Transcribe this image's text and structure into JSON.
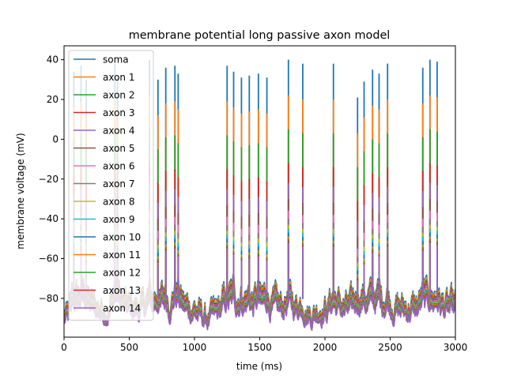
{
  "chart_data": {
    "type": "line",
    "title": "membrane potential long passive axon model",
    "xlabel": "time (ms)",
    "ylabel": "membrane voltage (mV)",
    "xlim": [
      0,
      3000
    ],
    "ylim": [
      -99.5,
      47
    ],
    "xticks": [
      0,
      500,
      1000,
      1500,
      2000,
      2500,
      3000
    ],
    "yticks": [
      -80,
      -60,
      -40,
      -20,
      0,
      20,
      40
    ],
    "xtick_labels": [
      "0",
      "500",
      "1000",
      "1500",
      "2000",
      "2500",
      "3000"
    ],
    "ytick_labels": [
      "−80",
      "−60",
      "−40",
      "−20",
      "0",
      "20",
      "40"
    ],
    "grid": false,
    "legend_position": "top-left",
    "spike_times_ms": [
      75,
      130,
      170,
      390,
      410,
      655,
      720,
      780,
      850,
      875,
      1250,
      1300,
      1360,
      1420,
      1490,
      1555,
      1720,
      1830,
      2065,
      2250,
      2300,
      2365,
      2415,
      2480,
      2750,
      2805,
      2860
    ],
    "spike_peak_soma_mV": [
      34,
      37,
      30,
      38,
      32,
      40,
      30,
      36,
      37,
      33,
      37,
      34,
      31,
      32,
      33,
      31,
      40,
      38,
      38,
      21,
      29,
      35,
      33,
      38,
      36,
      40,
      39
    ],
    "series": [
      {
        "name": "soma",
        "color": "#1f77b4",
        "baseline_mV": -82,
        "peak_atten_mV": 0
      },
      {
        "name": "axon 1",
        "color": "#ff7f0e",
        "baseline_mV": -83,
        "peak_atten_mV": 18
      },
      {
        "name": "axon 2",
        "color": "#2ca02c",
        "baseline_mV": -84,
        "peak_atten_mV": 35
      },
      {
        "name": "axon 3",
        "color": "#d62728",
        "baseline_mV": -84.5,
        "peak_atten_mV": 52
      },
      {
        "name": "axon 4",
        "color": "#9467bd",
        "baseline_mV": -85,
        "peak_atten_mV": 62
      },
      {
        "name": "axon 5",
        "color": "#8c564b",
        "baseline_mV": -85.5,
        "peak_atten_mV": 70
      },
      {
        "name": "axon 6",
        "color": "#e377c2",
        "baseline_mV": -86,
        "peak_atten_mV": 76
      },
      {
        "name": "axon 7",
        "color": "#7f7f7f",
        "baseline_mV": -86.3,
        "peak_atten_mV": 80
      },
      {
        "name": "axon 8",
        "color": "#bcbd22",
        "baseline_mV": -86.6,
        "peak_atten_mV": 83
      },
      {
        "name": "axon 9",
        "color": "#17becf",
        "baseline_mV": -86.9,
        "peak_atten_mV": 85
      },
      {
        "name": "axon 10",
        "color": "#1f77b4",
        "baseline_mV": -87.2,
        "peak_atten_mV": 87
      },
      {
        "name": "axon 11",
        "color": "#ff7f0e",
        "baseline_mV": -87.5,
        "peak_atten_mV": 89
      },
      {
        "name": "axon 12",
        "color": "#2ca02c",
        "baseline_mV": -87.8,
        "peak_atten_mV": 90
      },
      {
        "name": "axon 13",
        "color": "#d62728",
        "baseline_mV": -88.1,
        "peak_atten_mV": 91
      },
      {
        "name": "axon 14",
        "color": "#9467bd",
        "baseline_mV": -88.4,
        "peak_atten_mV": 92
      }
    ]
  }
}
